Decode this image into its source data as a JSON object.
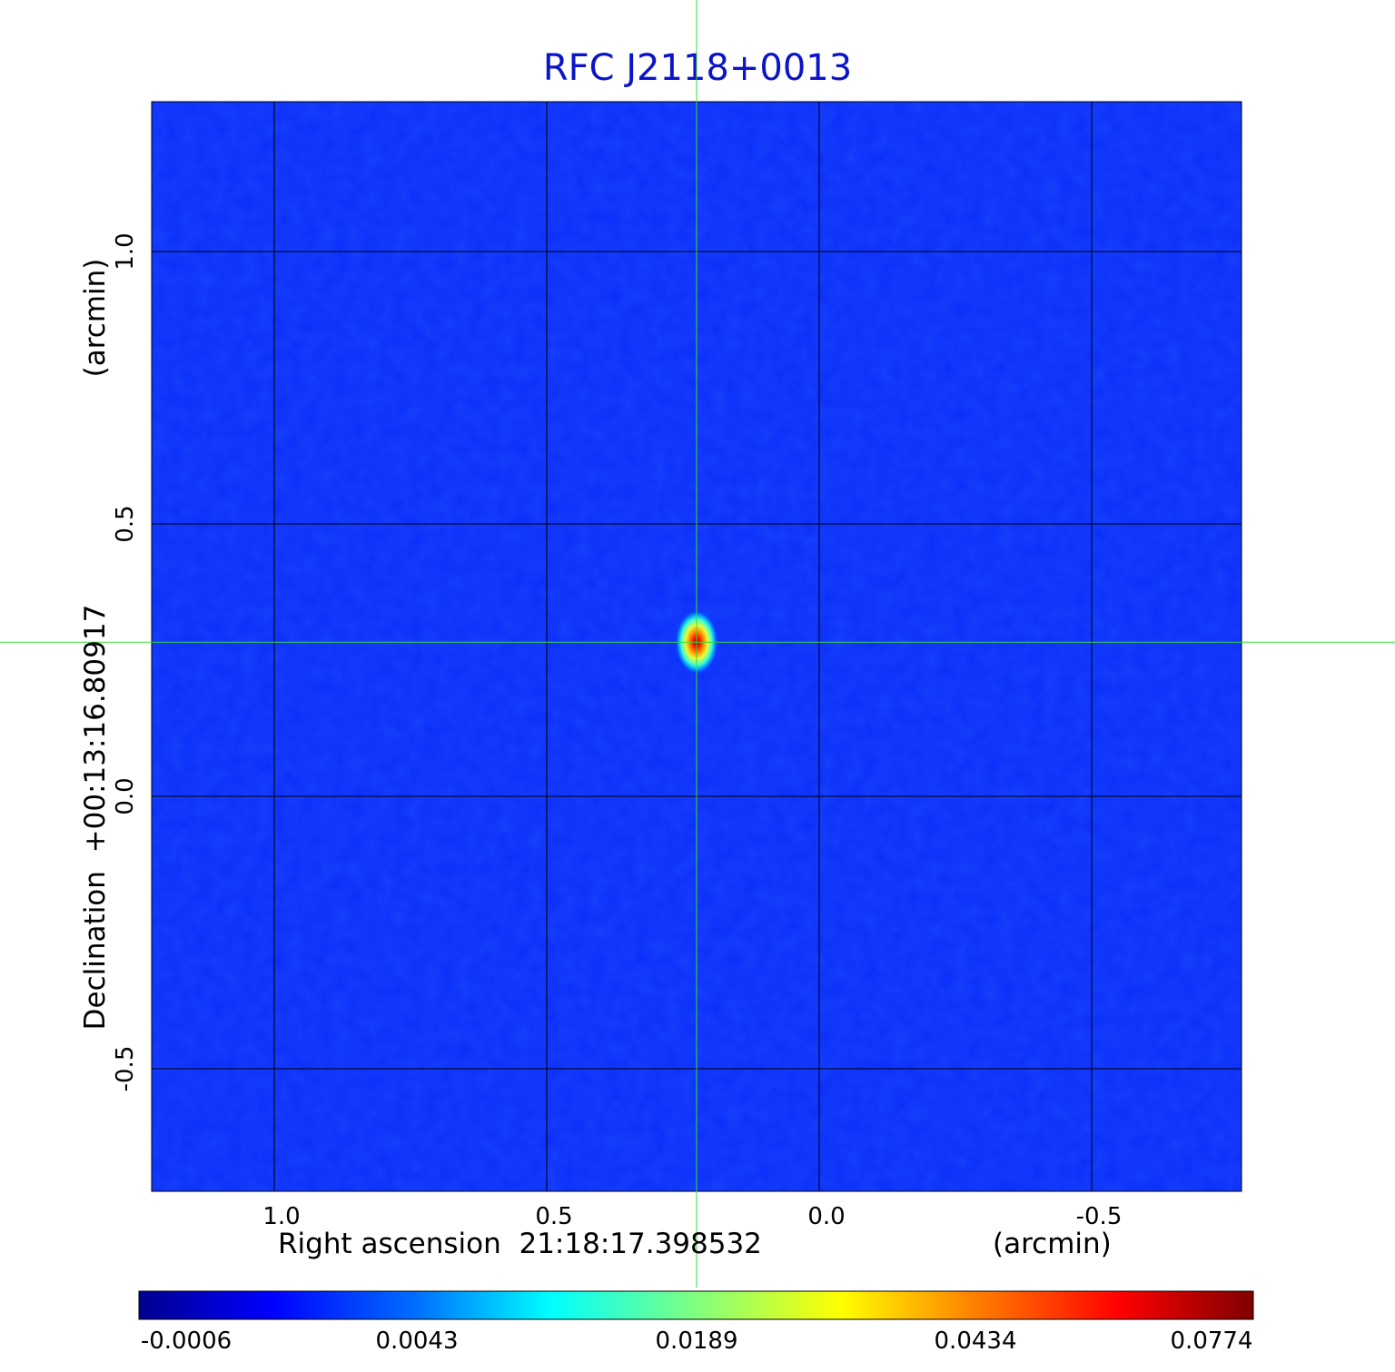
{
  "chart_data": {
    "type": "heatmap",
    "title": "RFC J2118+0013",
    "xlabel": "Right ascension  21:18:17.398532",
    "xunit": "(arcmin)",
    "ylabel": "Declination  +00:13:16.80917",
    "yunit": "(arcmin)",
    "x_ticks": [
      "1.0",
      "0.5",
      "0.0",
      "-0.5"
    ],
    "x_tick_values": [
      1.0,
      0.5,
      0.0,
      -0.5
    ],
    "xlim": [
      1.225,
      -0.775
    ],
    "y_ticks": [
      "1.0",
      "0.5",
      "0.0",
      "-0.5"
    ],
    "y_tick_values": [
      1.0,
      0.5,
      0.0,
      -0.5
    ],
    "ylim": [
      -0.725,
      1.275
    ],
    "grid": true,
    "colormap": "jet",
    "colorbar_ticks": [
      "-0.0006",
      "0.0043",
      "0.0189",
      "0.0434",
      "0.0774"
    ],
    "colorbar_range": [
      -0.0006,
      0.0774
    ],
    "sources": [
      {
        "x": 0.225,
        "y": 0.283,
        "peak": 0.0774
      }
    ],
    "crosshair": {
      "x": 0.225,
      "y": 0.283
    },
    "crosshair_color": "#33dd33"
  }
}
